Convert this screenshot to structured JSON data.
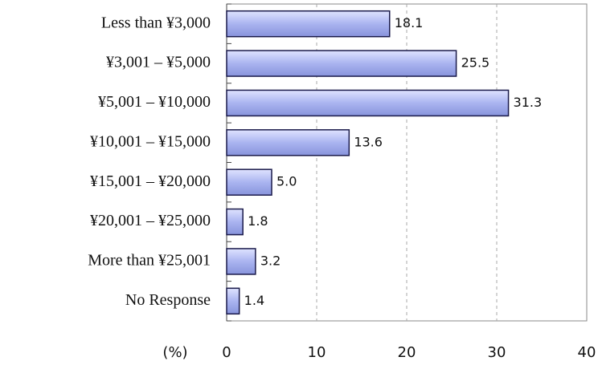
{
  "chart_data": {
    "type": "bar",
    "orientation": "horizontal",
    "categories": [
      "Less than ¥3,000",
      "¥3,001 – ¥5,000",
      "¥5,001 – ¥10,000",
      "¥10,001 – ¥15,000",
      "¥15,001 – ¥20,000",
      "¥20,001 – ¥25,000",
      "More than ¥25,001",
      "No Response"
    ],
    "values": [
      18.1,
      25.5,
      31.3,
      13.6,
      5.0,
      1.8,
      3.2,
      1.4
    ],
    "value_labels": [
      "18.1",
      "25.5",
      "31.3",
      "13.6",
      "5.0",
      "1.8",
      "3.2",
      "1.4"
    ],
    "color": "#aab4f0",
    "xlabel": "(%)",
    "xlim": [
      0,
      40
    ],
    "xticks": [
      0,
      10,
      20,
      30,
      40
    ],
    "grid": true
  }
}
